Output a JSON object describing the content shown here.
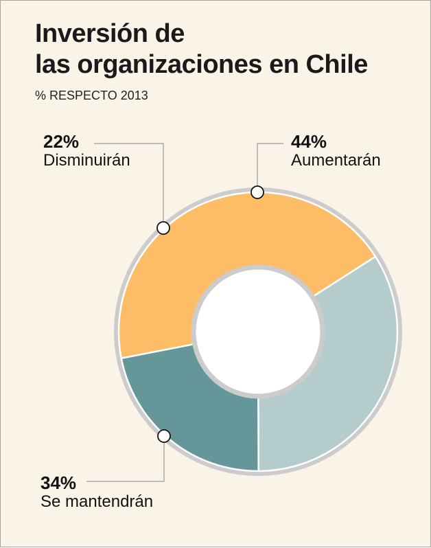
{
  "header": {
    "title_line1": "Inversión de",
    "title_line2": "las organizaciones en Chile",
    "subtitle": "% RESPECTO 2013"
  },
  "colors": {
    "background": "#f9f3e8",
    "ring": "#cccccc",
    "aumentaran": "#fdbd66",
    "disminuiran": "#65979a",
    "mantendran": "#b4cccc",
    "leader": "#9c9c9c"
  },
  "labels": {
    "aumentaran": {
      "pct": "44%",
      "name": "Aumentarán"
    },
    "disminuiran": {
      "pct": "22%",
      "name": "Disminuirán"
    },
    "mantendran": {
      "pct": "34%",
      "name": "Se mantendrán"
    }
  },
  "chart_data": {
    "type": "pie",
    "variant": "donut",
    "categories": [
      "Aumentarán",
      "Se mantendrán",
      "Disminuirán"
    ],
    "values": [
      44,
      34,
      22
    ],
    "unit": "%",
    "title": "Inversión de las organizaciones en Chile",
    "subtitle": "% RESPECTO 2013"
  }
}
